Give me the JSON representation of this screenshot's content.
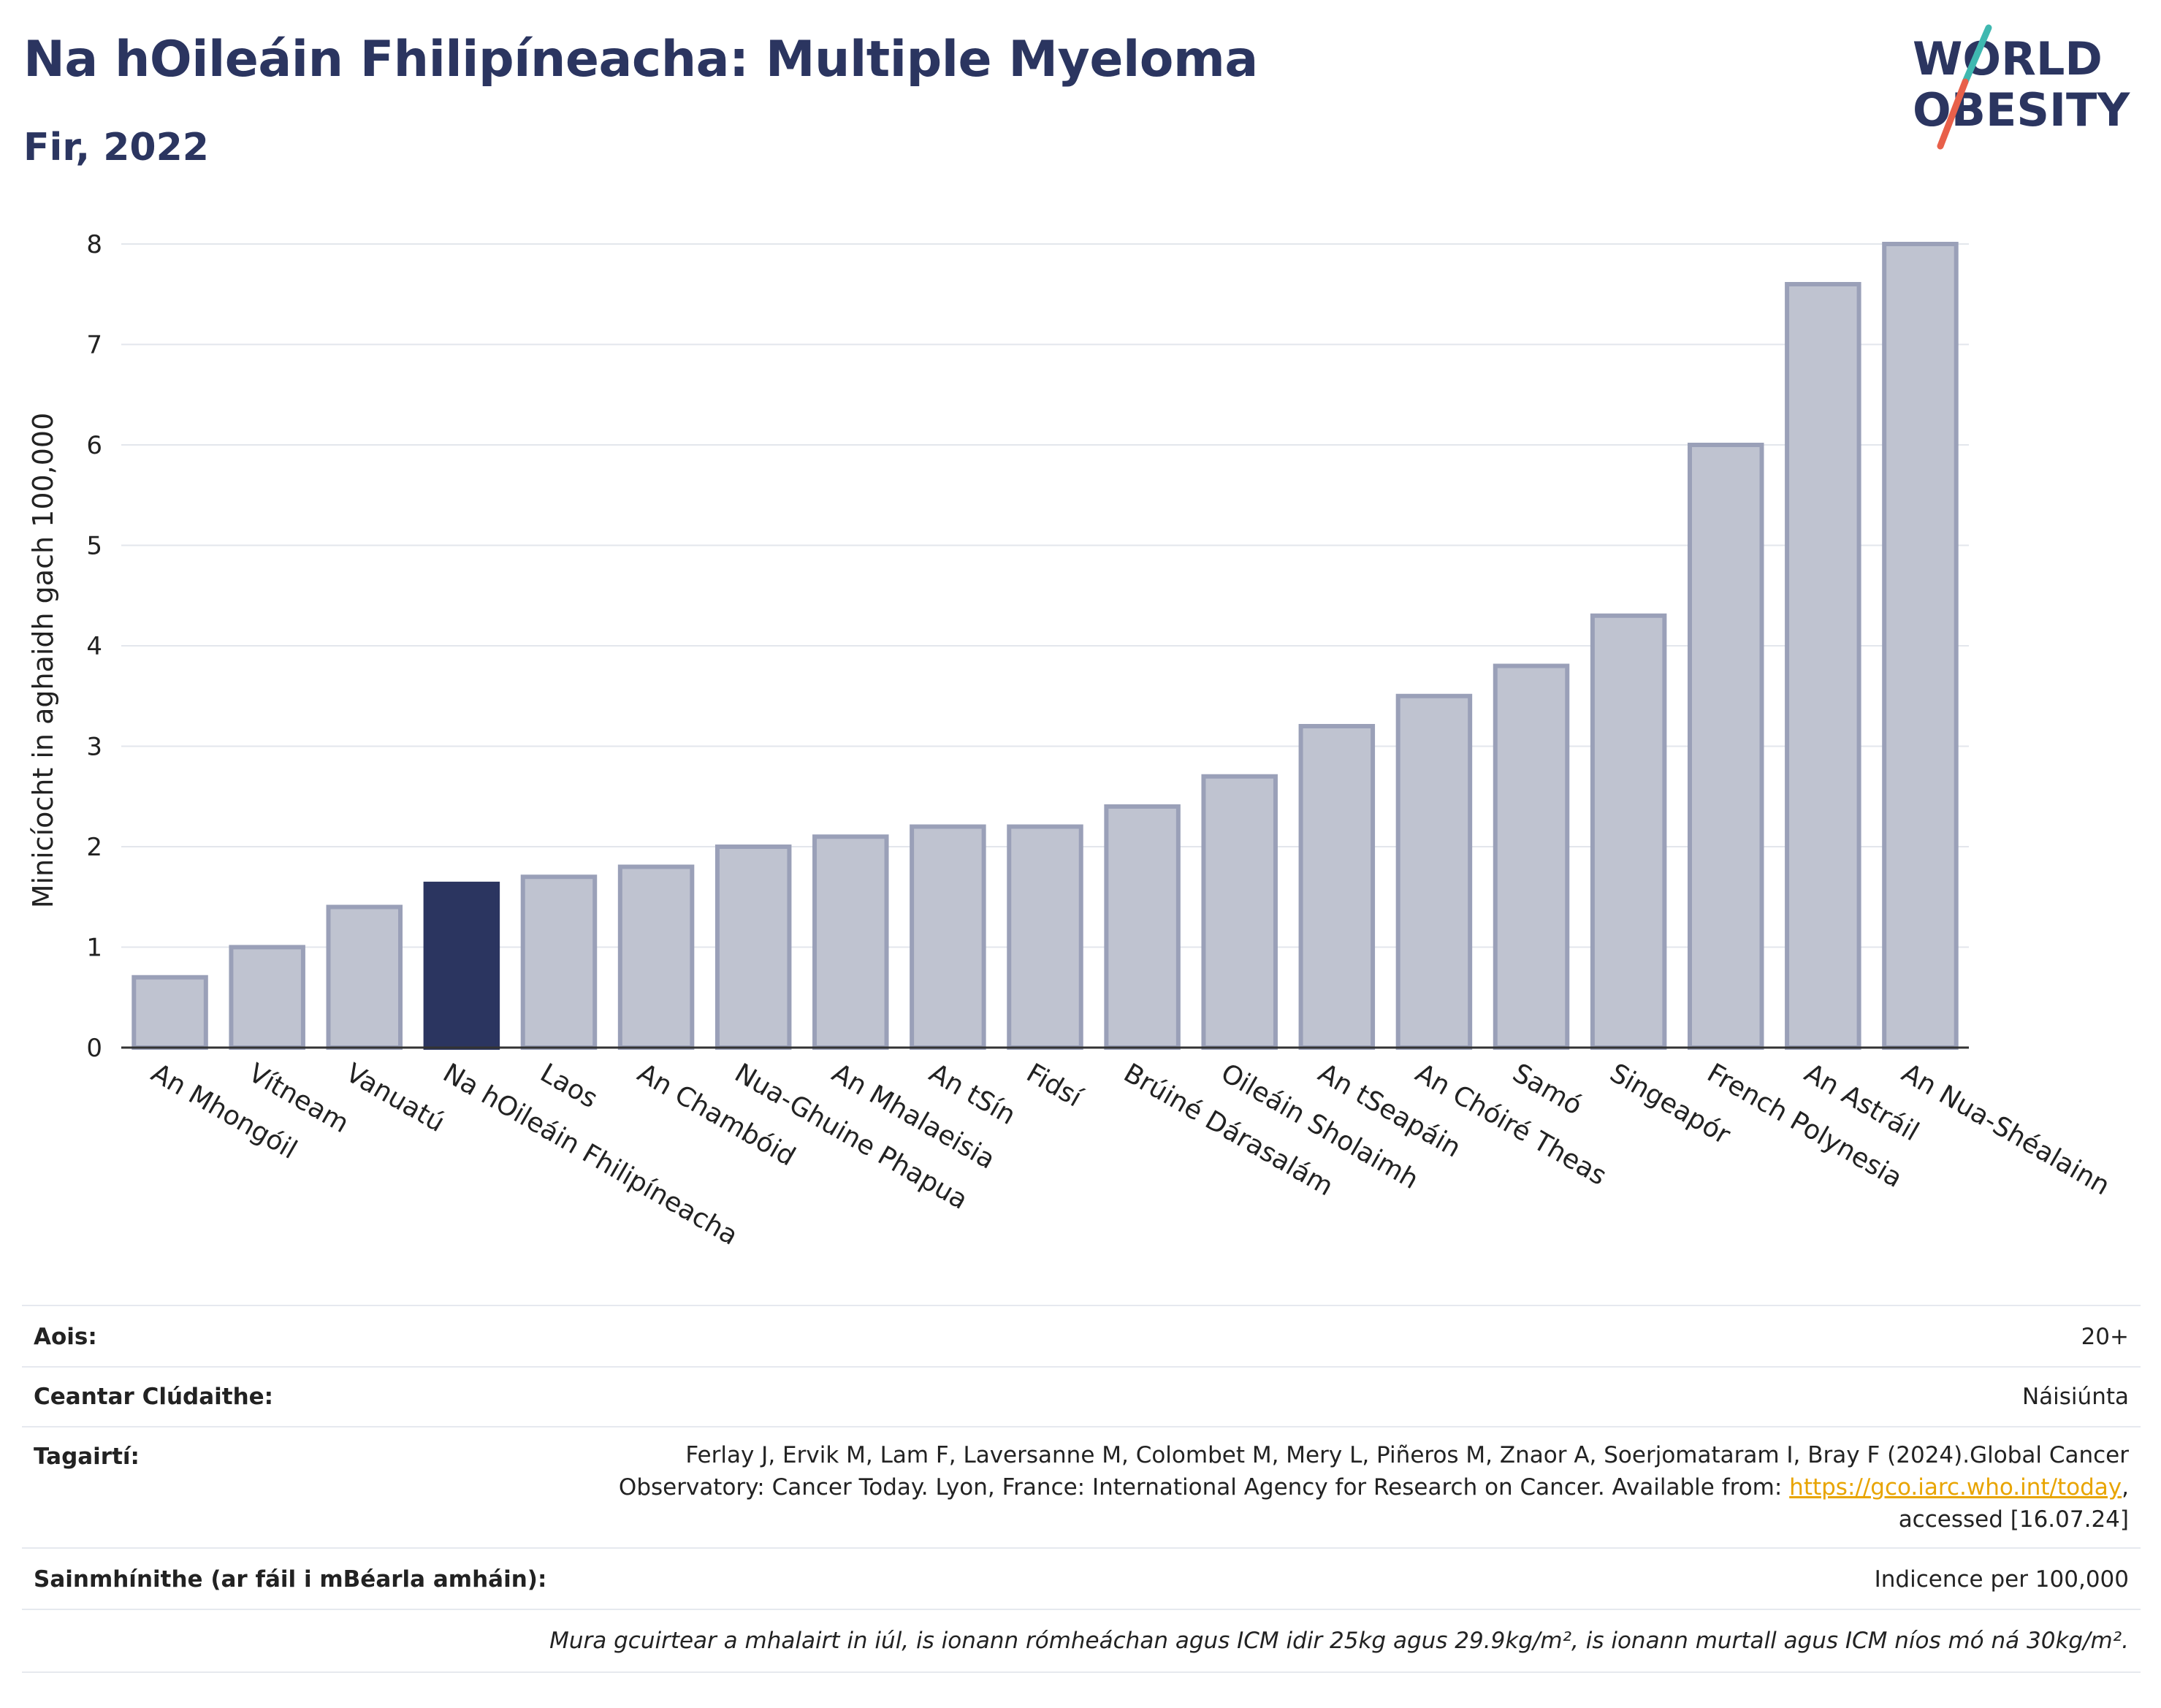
{
  "header": {
    "title": "Na hOileáin Fhilipíneacha: Multiple Myeloma",
    "subtitle": "Fir, 2022",
    "logo_line1": "WORLD",
    "logo_line2": "OBESITY"
  },
  "colors": {
    "bar": "#bfc3d0",
    "bar_stroke": "#9aa0b8",
    "highlight": "#2b3560",
    "title": "#2b3560",
    "logo_teal": "#3fb8b0",
    "logo_red": "#e8604a",
    "link": "#e8a400"
  },
  "chart_data": {
    "type": "bar",
    "ylabel": "Minicíocht in aghaidh gach 100,000",
    "ylim": [
      0,
      8
    ],
    "yticks": [
      0,
      1,
      2,
      3,
      4,
      5,
      6,
      7,
      8
    ],
    "grid": true,
    "highlight_category": "Na hOileáin Fhilipíneacha",
    "categories": [
      "An Mhongóil",
      "Vítneam",
      "Vanuatú",
      "Na hOileáin Fhilipíneacha",
      "Laos",
      "An Chambóid",
      "Nua-Ghuine Phapua",
      "An Mhalaeisia",
      "An tSín",
      "Fidsí",
      "Brúiné Dárasalám",
      "Oileáin Sholaimh",
      "An tSeapáin",
      "An Chóiré Theas",
      "Samó",
      "Singeapór",
      "French Polynesia",
      "An Astráil",
      "An Nua-Shéalainn"
    ],
    "values": [
      0.7,
      1.0,
      1.4,
      1.63,
      1.7,
      1.8,
      2.0,
      2.1,
      2.2,
      2.2,
      2.4,
      2.7,
      3.2,
      3.5,
      3.8,
      4.3,
      6.0,
      7.6,
      8.0
    ]
  },
  "meta": {
    "age_label": "Aois:",
    "age_value": "20+",
    "coverage_label": "Ceantar Clúdaithe:",
    "coverage_value": "Náisiúnta",
    "refs_label": "Tagairtí:",
    "refs_line1": "Ferlay J, Ervik M, Lam F, Laversanne M, Colombet M, Mery L, Piñeros M, Znaor A, Soerjomataram I, Bray F (2024).Global Cancer",
    "refs_line2_pre": "Observatory: Cancer Today. Lyon, France: International Agency for Research on Cancer. Available from: ",
    "refs_link": "https://gco.iarc.who.int/today",
    "refs_line2_post": ",",
    "refs_line3": "accessed [16.07.24]",
    "defs_label": "Sainmhínithe (ar fáil i mBéarla amháin):",
    "defs_value": "Indicence per 100,000",
    "note": "Mura gcuirtear a mhalairt in iúl, is ionann rómheáchan agus ICM idir 25kg agus 29.9kg/m², is ionann murtall agus ICM níos mó ná 30kg/m²."
  }
}
